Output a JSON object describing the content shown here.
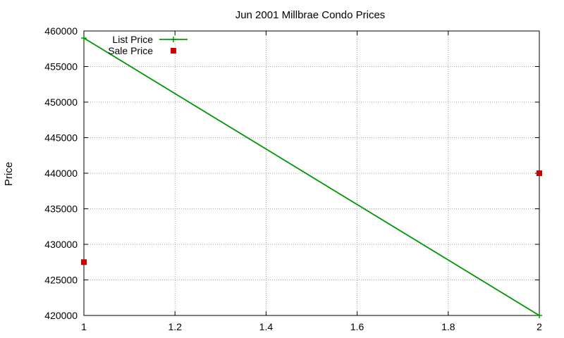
{
  "chart_data": {
    "type": "line",
    "title": "Jun 2001 Millbrae Condo Prices",
    "xlabel": "",
    "ylabel": "Price",
    "xlim": [
      1,
      2
    ],
    "ylim": [
      420000,
      460000
    ],
    "x_ticks": [
      "1",
      "1.2",
      "1.4",
      "1.6",
      "1.8",
      "2"
    ],
    "y_ticks": [
      "420000",
      "425000",
      "430000",
      "435000",
      "440000",
      "445000",
      "450000",
      "455000",
      "460000"
    ],
    "grid": true,
    "legend_position": "top-left",
    "series": [
      {
        "name": "List Price",
        "style": "line-with-plus-markers",
        "color": "#009900",
        "points": [
          {
            "x": 1,
            "y": 459000
          },
          {
            "x": 2,
            "y": 420000
          }
        ]
      },
      {
        "name": "Sale Price",
        "style": "square-markers",
        "color": "#cc0000",
        "points": [
          {
            "x": 1,
            "y": 427500
          },
          {
            "x": 2,
            "y": 440000
          }
        ]
      }
    ]
  }
}
